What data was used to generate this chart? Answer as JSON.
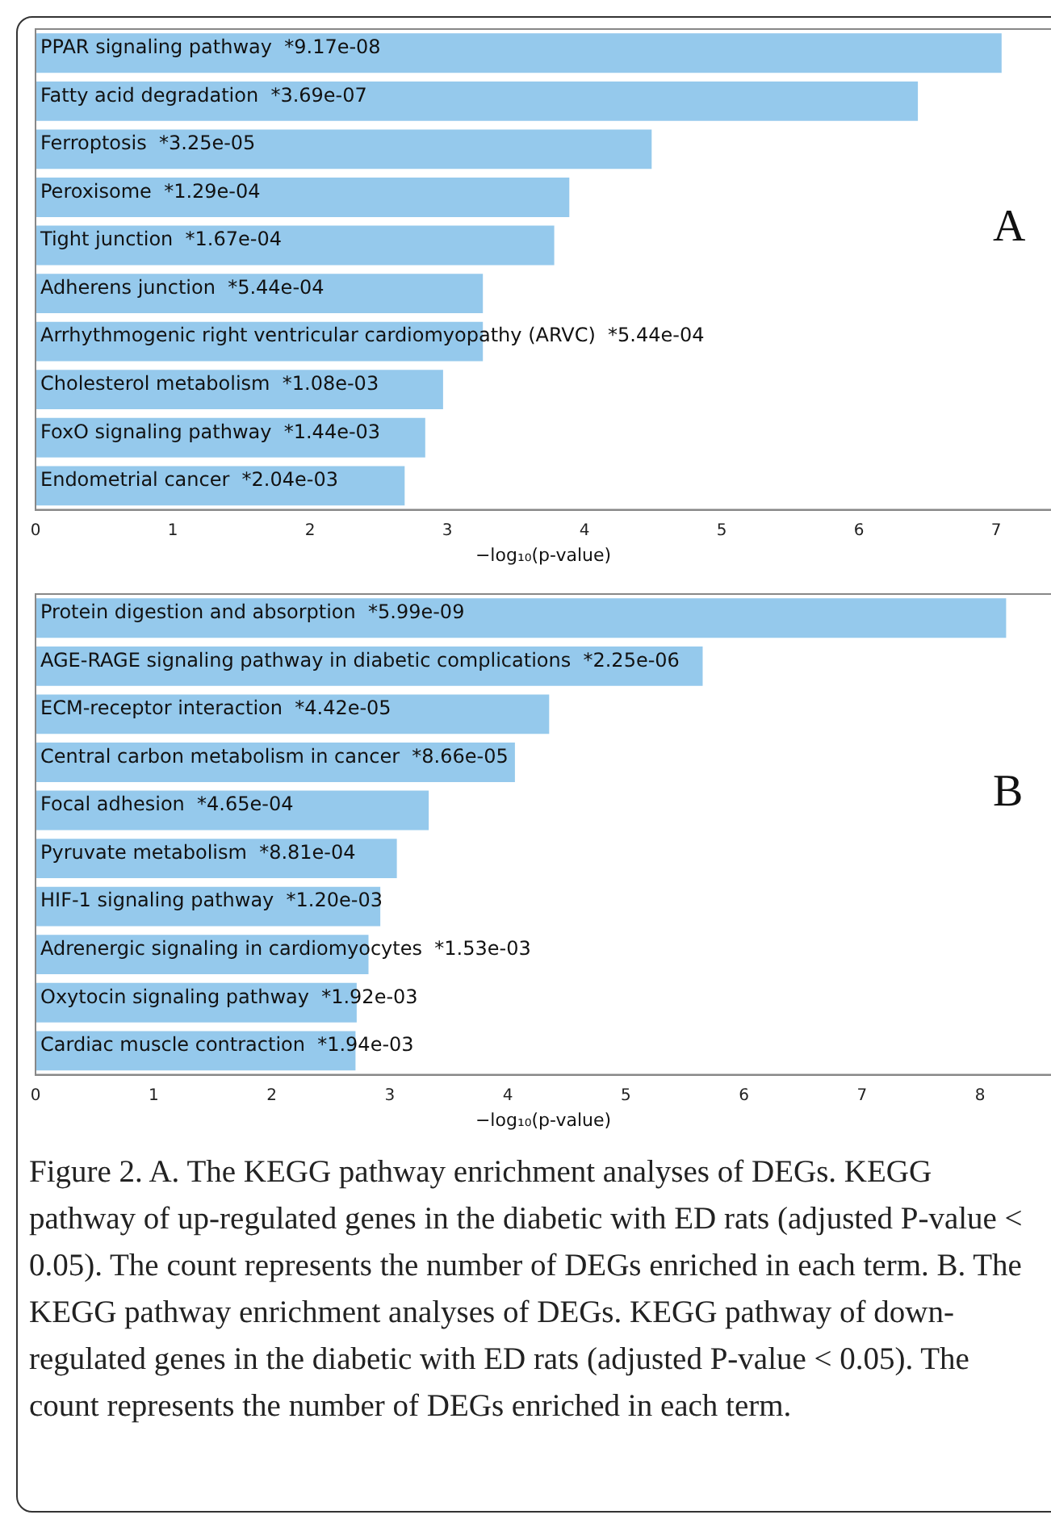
{
  "chart_data": [
    {
      "type": "bar",
      "orientation": "horizontal",
      "xlabel": "−log₁₀(p-value)",
      "color": "#95c9ec",
      "tick_labels": "x",
      "xlim": [
        0,
        7.4
      ],
      "xticks": [
        0,
        1,
        2,
        3,
        4,
        5,
        6,
        7
      ],
      "categories": [
        "PPAR signaling pathway  *9.17e-08",
        "Fatty acid degradation  *3.69e-07",
        "Ferroptosis  *3.25e-05",
        "Peroxisome  *1.29e-04",
        "Tight junction  *1.67e-04",
        "Adherens junction  *5.44e-04",
        "Arrhythmogenic right ventricular cardiomyopathy (ARVC)  *5.44e-04",
        "Cholesterol metabolism  *1.08e-03",
        "FoxO signaling pathway  *1.44e-03",
        "Endometrial cancer  *2.04e-03"
      ],
      "values": [
        7.04,
        6.43,
        4.49,
        3.89,
        3.78,
        3.26,
        3.26,
        2.97,
        2.84,
        2.69
      ],
      "annotations": [
        "A"
      ]
    },
    {
      "type": "bar",
      "orientation": "horizontal",
      "xlabel": "−log₁₀(p-value)",
      "color": "#95c9ec",
      "tick_labels": "x",
      "xlim": [
        0,
        8.6
      ],
      "xticks": [
        0,
        1,
        2,
        3,
        4,
        5,
        6,
        7,
        8
      ],
      "categories": [
        "Protein digestion and absorption  *5.99e-09",
        "AGE-RAGE signaling pathway in diabetic complications  *2.25e-06",
        "ECM-receptor interaction  *4.42e-05",
        "Central carbon metabolism in cancer  *8.66e-05",
        "Focal adhesion  *4.65e-04",
        "Pyruvate metabolism  *8.81e-04",
        "HIF-1 signaling pathway  *1.20e-03",
        "Adrenergic signaling in cardiomyocytes  *1.53e-03",
        "Oxytocin signaling pathway  *1.92e-03",
        "Cardiac muscle contraction  *1.94e-03"
      ],
      "values": [
        8.22,
        5.65,
        4.35,
        4.06,
        3.33,
        3.06,
        2.92,
        2.82,
        2.72,
        2.71
      ],
      "annotations": [
        "B",
        "Figure 2. A. The KEGG pathway enrichment analyses of DEGs. KEGG pathway of up-regulated genes in the diabetic with ED rats (adjusted P-value < 0.05). The count represents the number of DEGs enriched in each term. B. The KEGG pathway enrichment analyses of DEGs. KEGG pathway of down-regulated genes in the diabetic with ED rats (adjusted P-value < 0.05). The count represents the number of DEGs enriched in each term."
      ]
    }
  ]
}
